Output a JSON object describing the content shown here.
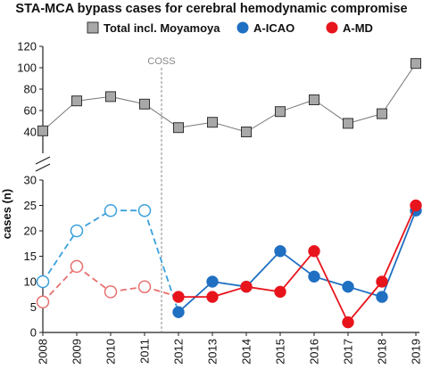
{
  "chart_data": {
    "type": "line",
    "title": "STA-MCA bypass cases for cerebral hemodynamic compromise",
    "ylabel": "cases (n)",
    "xlabel": "",
    "x": [
      "2008",
      "2009",
      "2010",
      "2011",
      "2012",
      "2013",
      "2014",
      "2015",
      "2016",
      "2017",
      "2018",
      "2019"
    ],
    "y_axis_broken": true,
    "ylim_upper": [
      20,
      120
    ],
    "yticks_upper": [
      40,
      60,
      80,
      100,
      120
    ],
    "ylim_lower": [
      0,
      30
    ],
    "yticks_lower": [
      0,
      5,
      10,
      15,
      20,
      25,
      30
    ],
    "annotation": {
      "label": "COSS",
      "x_between": [
        "2011",
        "2012"
      ]
    },
    "legend_position": "top",
    "series": [
      {
        "name": "Total incl. Moyamoya",
        "color": "#666666",
        "marker": "square",
        "values": [
          41,
          69,
          73,
          66,
          44,
          49,
          40,
          59,
          70,
          48,
          57,
          104
        ]
      },
      {
        "name": "A-ICAO",
        "color": "#1f6fc2",
        "marker": "circle",
        "values": [
          10,
          20,
          24,
          24,
          4,
          10,
          9,
          16,
          11,
          9,
          7,
          24
        ],
        "hollow_through": "2011"
      },
      {
        "name": "A-MD",
        "color": "#e8141c",
        "marker": "circle",
        "values": [
          6,
          13,
          8,
          9,
          7,
          7,
          9,
          8,
          16,
          2,
          10,
          25
        ],
        "hollow_through": "2011"
      }
    ]
  }
}
